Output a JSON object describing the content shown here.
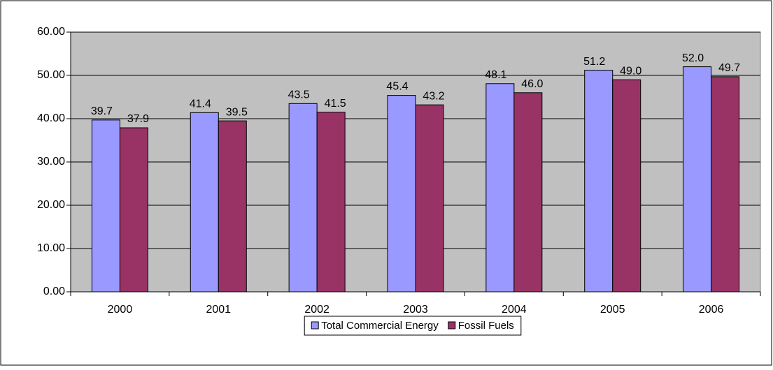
{
  "chart_data": {
    "type": "bar",
    "categories": [
      "2000",
      "2001",
      "2002",
      "2003",
      "2004",
      "2005",
      "2006"
    ],
    "series": [
      {
        "name": "Total Commercial Energy",
        "color": "#9999ff",
        "values": [
          39.7,
          41.4,
          43.5,
          45.4,
          48.1,
          51.2,
          52.0
        ],
        "value_labels": [
          "39.7",
          "41.4",
          "43.5",
          "45.4",
          "48.1",
          "51.2",
          "52.0"
        ]
      },
      {
        "name": "Fossil Fuels",
        "color": "#993366",
        "values": [
          37.9,
          39.5,
          41.5,
          43.2,
          46.0,
          49.0,
          49.7
        ],
        "value_labels": [
          "37.9",
          "39.5",
          "41.5",
          "43.2",
          "46.0",
          "49.0",
          "49.7"
        ]
      }
    ],
    "ylim": [
      0,
      60
    ],
    "yticks": [
      {
        "value": 0,
        "label": "0.00"
      },
      {
        "value": 10,
        "label": "10.00"
      },
      {
        "value": 20,
        "label": "20.00"
      },
      {
        "value": 30,
        "label": "30.00"
      },
      {
        "value": 40,
        "label": "40.00"
      },
      {
        "value": 50,
        "label": "50.00"
      },
      {
        "value": 60,
        "label": "60.00"
      }
    ],
    "grid": true,
    "plot_background": "#c0c0c0",
    "legend": "bottom"
  }
}
